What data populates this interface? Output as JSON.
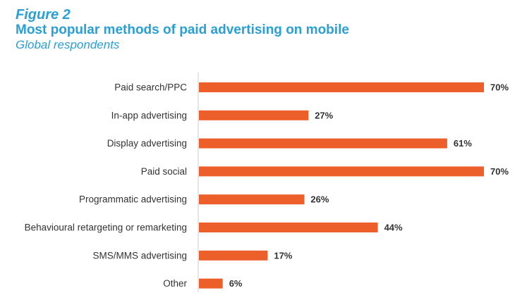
{
  "figure_label": "Figure 2",
  "chart_data": {
    "type": "bar",
    "orientation": "horizontal",
    "title": "Most popular methods of paid advertising on mobile",
    "subtitle": "Global respondents",
    "categories": [
      "Paid search/PPC",
      "In-app advertising",
      "Display advertising",
      "Paid social",
      "Programmatic advertising",
      "Behavioural retargeting or remarketing",
      "SMS/MMS advertising",
      "Other"
    ],
    "values": [
      70,
      27,
      61,
      70,
      26,
      44,
      17,
      6
    ],
    "value_labels": [
      "70%",
      "27%",
      "61%",
      "70%",
      "26%",
      "44%",
      "17%",
      "6%"
    ],
    "unit": "%",
    "xlim": [
      0,
      70
    ],
    "grid": false,
    "legend": "none",
    "colors": {
      "bar": "#ec5f2a",
      "axis": "#cccccc",
      "title": "#2a9fd6",
      "text": "#333333"
    }
  }
}
